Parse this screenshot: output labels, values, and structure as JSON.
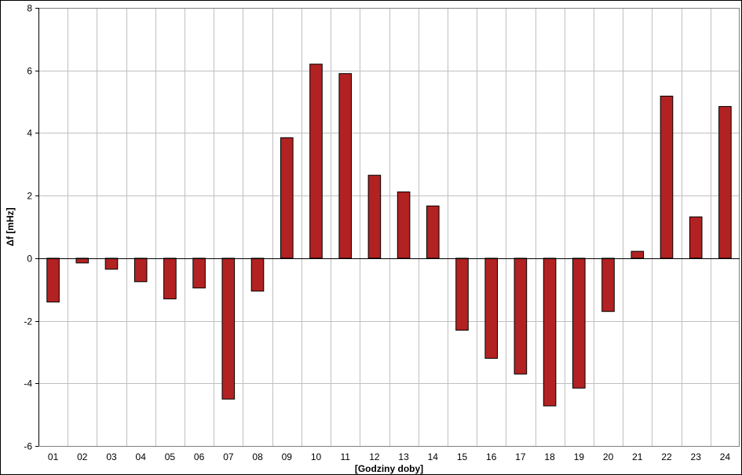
{
  "chart_data": {
    "type": "bar",
    "title": "",
    "xlabel": "[Godziny doby]",
    "ylabel": "Δf [mHz]",
    "ylim": [
      -6,
      8
    ],
    "yticks": [
      -6,
      -4,
      -2,
      0,
      2,
      4,
      6,
      8
    ],
    "grid": true,
    "legend": "none",
    "categories": [
      "01",
      "02",
      "03",
      "04",
      "05",
      "06",
      "07",
      "08",
      "09",
      "10",
      "11",
      "12",
      "13",
      "14",
      "15",
      "16",
      "17",
      "18",
      "19",
      "20",
      "21",
      "22",
      "23",
      "24"
    ],
    "values": [
      -1.4,
      -0.15,
      -0.35,
      -0.75,
      -1.3,
      -0.95,
      -4.5,
      -1.05,
      3.85,
      6.2,
      5.9,
      2.65,
      2.12,
      1.67,
      -2.3,
      -3.2,
      -3.7,
      -4.72,
      -4.15,
      -1.7,
      0.22,
      5.18,
      1.32,
      4.85
    ],
    "colors": {
      "bar": "#B22222",
      "bar_outline": "#000000",
      "grid": "#C0C0C0"
    }
  }
}
